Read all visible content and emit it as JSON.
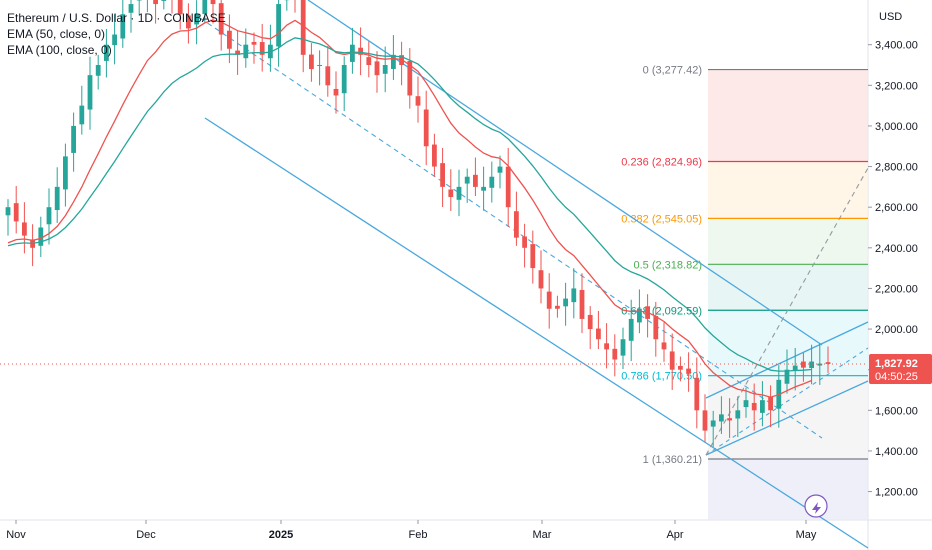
{
  "header": {
    "title": "Ethereum / U.S. Dollar · 1D · COINBASE",
    "ema50": "EMA (50, close, 0)",
    "ema100": "EMA (100, close, 0)",
    "currency": "USD"
  },
  "price_badge": {
    "price": "1,827.92",
    "timer": "04:50:25",
    "color": "#ef5350"
  },
  "colors": {
    "up": "#26a69a",
    "down": "#ef5350",
    "ema50": "#ef5350",
    "ema100": "#26a69a",
    "channel": "#4aa8de",
    "grid_line": "#e0e3eb"
  },
  "chart_data": {
    "type": "candlestick",
    "x_axis": {
      "ticks": [
        "Nov",
        "Dec",
        "2025",
        "Feb",
        "Mar",
        "Apr",
        "May"
      ]
    },
    "y_axis": {
      "ticks": [
        "1,200.00",
        "1,400.00",
        "1,600.00",
        "1,800.00",
        "2,000.00",
        "2,200.00",
        "2,400.00",
        "2,600.00",
        "2,800.00",
        "3,000.00",
        "3,200.00",
        "3,400.00"
      ],
      "range": [
        1060,
        3620
      ]
    },
    "last_price": 1827.92,
    "fibonacci": [
      {
        "level": "0",
        "price": "3,277.42",
        "color": "#787b86"
      },
      {
        "level": "0.236",
        "price": "2,824.96",
        "color": "#f23645"
      },
      {
        "level": "0.382",
        "price": "2,545.05",
        "color": "#ff9800"
      },
      {
        "level": "0.5",
        "price": "2,318.82",
        "color": "#4caf50"
      },
      {
        "level": "0.618",
        "price": "2,092.59",
        "color": "#089981"
      },
      {
        "level": "0.786",
        "price": "1,770.50",
        "color": "#00bcd4"
      },
      {
        "level": "1",
        "price": "1,360.21",
        "color": "#787b86"
      }
    ],
    "fib_label_texts": [
      "0 (3,277.42)",
      "0.236 (2,824.96)",
      "0.382 (2,545.05)",
      "0.5 (2,318.82)",
      "0.618 (2,092.59)",
      "0.786 (1,770.50)",
      "1 (1,360.21)"
    ],
    "close_series": [
      2600,
      2530,
      2460,
      2400,
      2500,
      2600,
      2700,
      2850,
      3000,
      3100,
      3250,
      3300,
      3400,
      3450,
      3550,
      3600,
      3650,
      3700,
      3600,
      3700,
      3650,
      3550,
      3480,
      3550,
      3650,
      3600,
      3450,
      3380,
      3350,
      3400,
      3400,
      3350,
      3400,
      3600,
      3720,
      3650,
      3350,
      3280,
      3300,
      3200,
      3150,
      3300,
      3400,
      3350,
      3300,
      3250,
      3300,
      3350,
      3300,
      3150,
      3100,
      2900,
      2800,
      2700,
      2650,
      2700,
      2750,
      2700,
      2700,
      2750,
      2800,
      2600,
      2450,
      2400,
      2300,
      2200,
      2100,
      2100,
      2150,
      2200,
      2050,
      2000,
      1950,
      1900,
      1850,
      1950,
      2050,
      2100,
      2050,
      1950,
      1900,
      1800,
      1800,
      1780,
      1600,
      1500,
      1550,
      1580,
      1550,
      1600,
      1650,
      1600,
      1650,
      1600,
      1750,
      1800,
      1820,
      1810,
      1840,
      1830,
      1828
    ]
  }
}
